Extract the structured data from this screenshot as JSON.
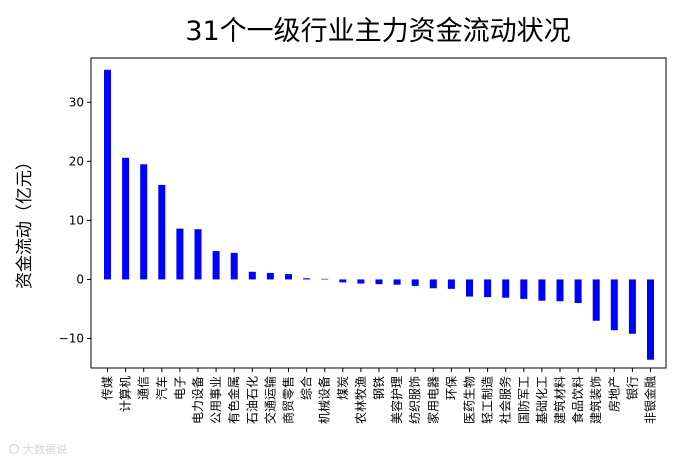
{
  "chart_data": {
    "type": "bar",
    "title": "31个一级行业主力资金流动状况",
    "ylabel": "资金流动（亿元）",
    "xlabel": "",
    "ylim": [
      -15,
      37.5
    ],
    "yticks": [
      30,
      20,
      10,
      0,
      -10
    ],
    "ytick_labels": [
      "30",
      "20",
      "10",
      "0",
      "−10"
    ],
    "bar_color": "#0000ff",
    "grid": false,
    "categories": [
      "传媒",
      "计算机",
      "通信",
      "汽车",
      "电子",
      "电力设备",
      "公用事业",
      "有色金属",
      "石油石化",
      "交通运输",
      "商贸零售",
      "综合",
      "机械设备",
      "煤炭",
      "农林牧渔",
      "钢铁",
      "美容护理",
      "纺织服饰",
      "家用电器",
      "环保",
      "医药生物",
      "轻工制造",
      "社会服务",
      "国防军工",
      "基础化工",
      "建筑材料",
      "食品饮料",
      "建筑装饰",
      "房地产",
      "银行",
      "非银金融"
    ],
    "values": [
      35.5,
      20.6,
      19.5,
      16.0,
      8.6,
      8.5,
      4.8,
      4.5,
      1.3,
      1.1,
      0.9,
      0.2,
      0.1,
      -0.5,
      -0.7,
      -0.8,
      -0.9,
      -1.1,
      -1.5,
      -1.6,
      -2.9,
      -3.0,
      -3.1,
      -3.3,
      -3.6,
      -3.7,
      -4.0,
      -7.0,
      -8.6,
      -9.2,
      -13.6
    ]
  },
  "watermark": "大数据说"
}
